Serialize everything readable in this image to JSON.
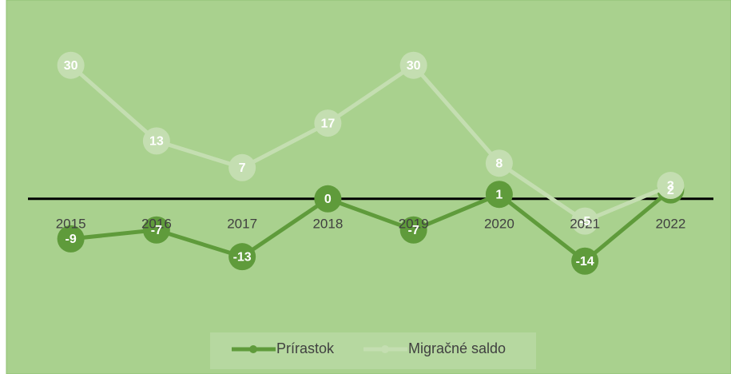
{
  "chart_data": {
    "type": "line",
    "categories": [
      "2015",
      "2016",
      "2017",
      "2018",
      "2019",
      "2020",
      "2021",
      "2022"
    ],
    "series": [
      {
        "name": "Prírastok",
        "color": "#5f9b3b",
        "values": [
          -9,
          -7,
          -13,
          0,
          -7,
          1,
          -14,
          2
        ]
      },
      {
        "name": "Migračné saldo",
        "color": "#c4deb1",
        "values": [
          30,
          13,
          7,
          17,
          30,
          8,
          -5,
          3
        ]
      }
    ],
    "ylim": [
      -25,
      40
    ],
    "legend": "bottom"
  }
}
